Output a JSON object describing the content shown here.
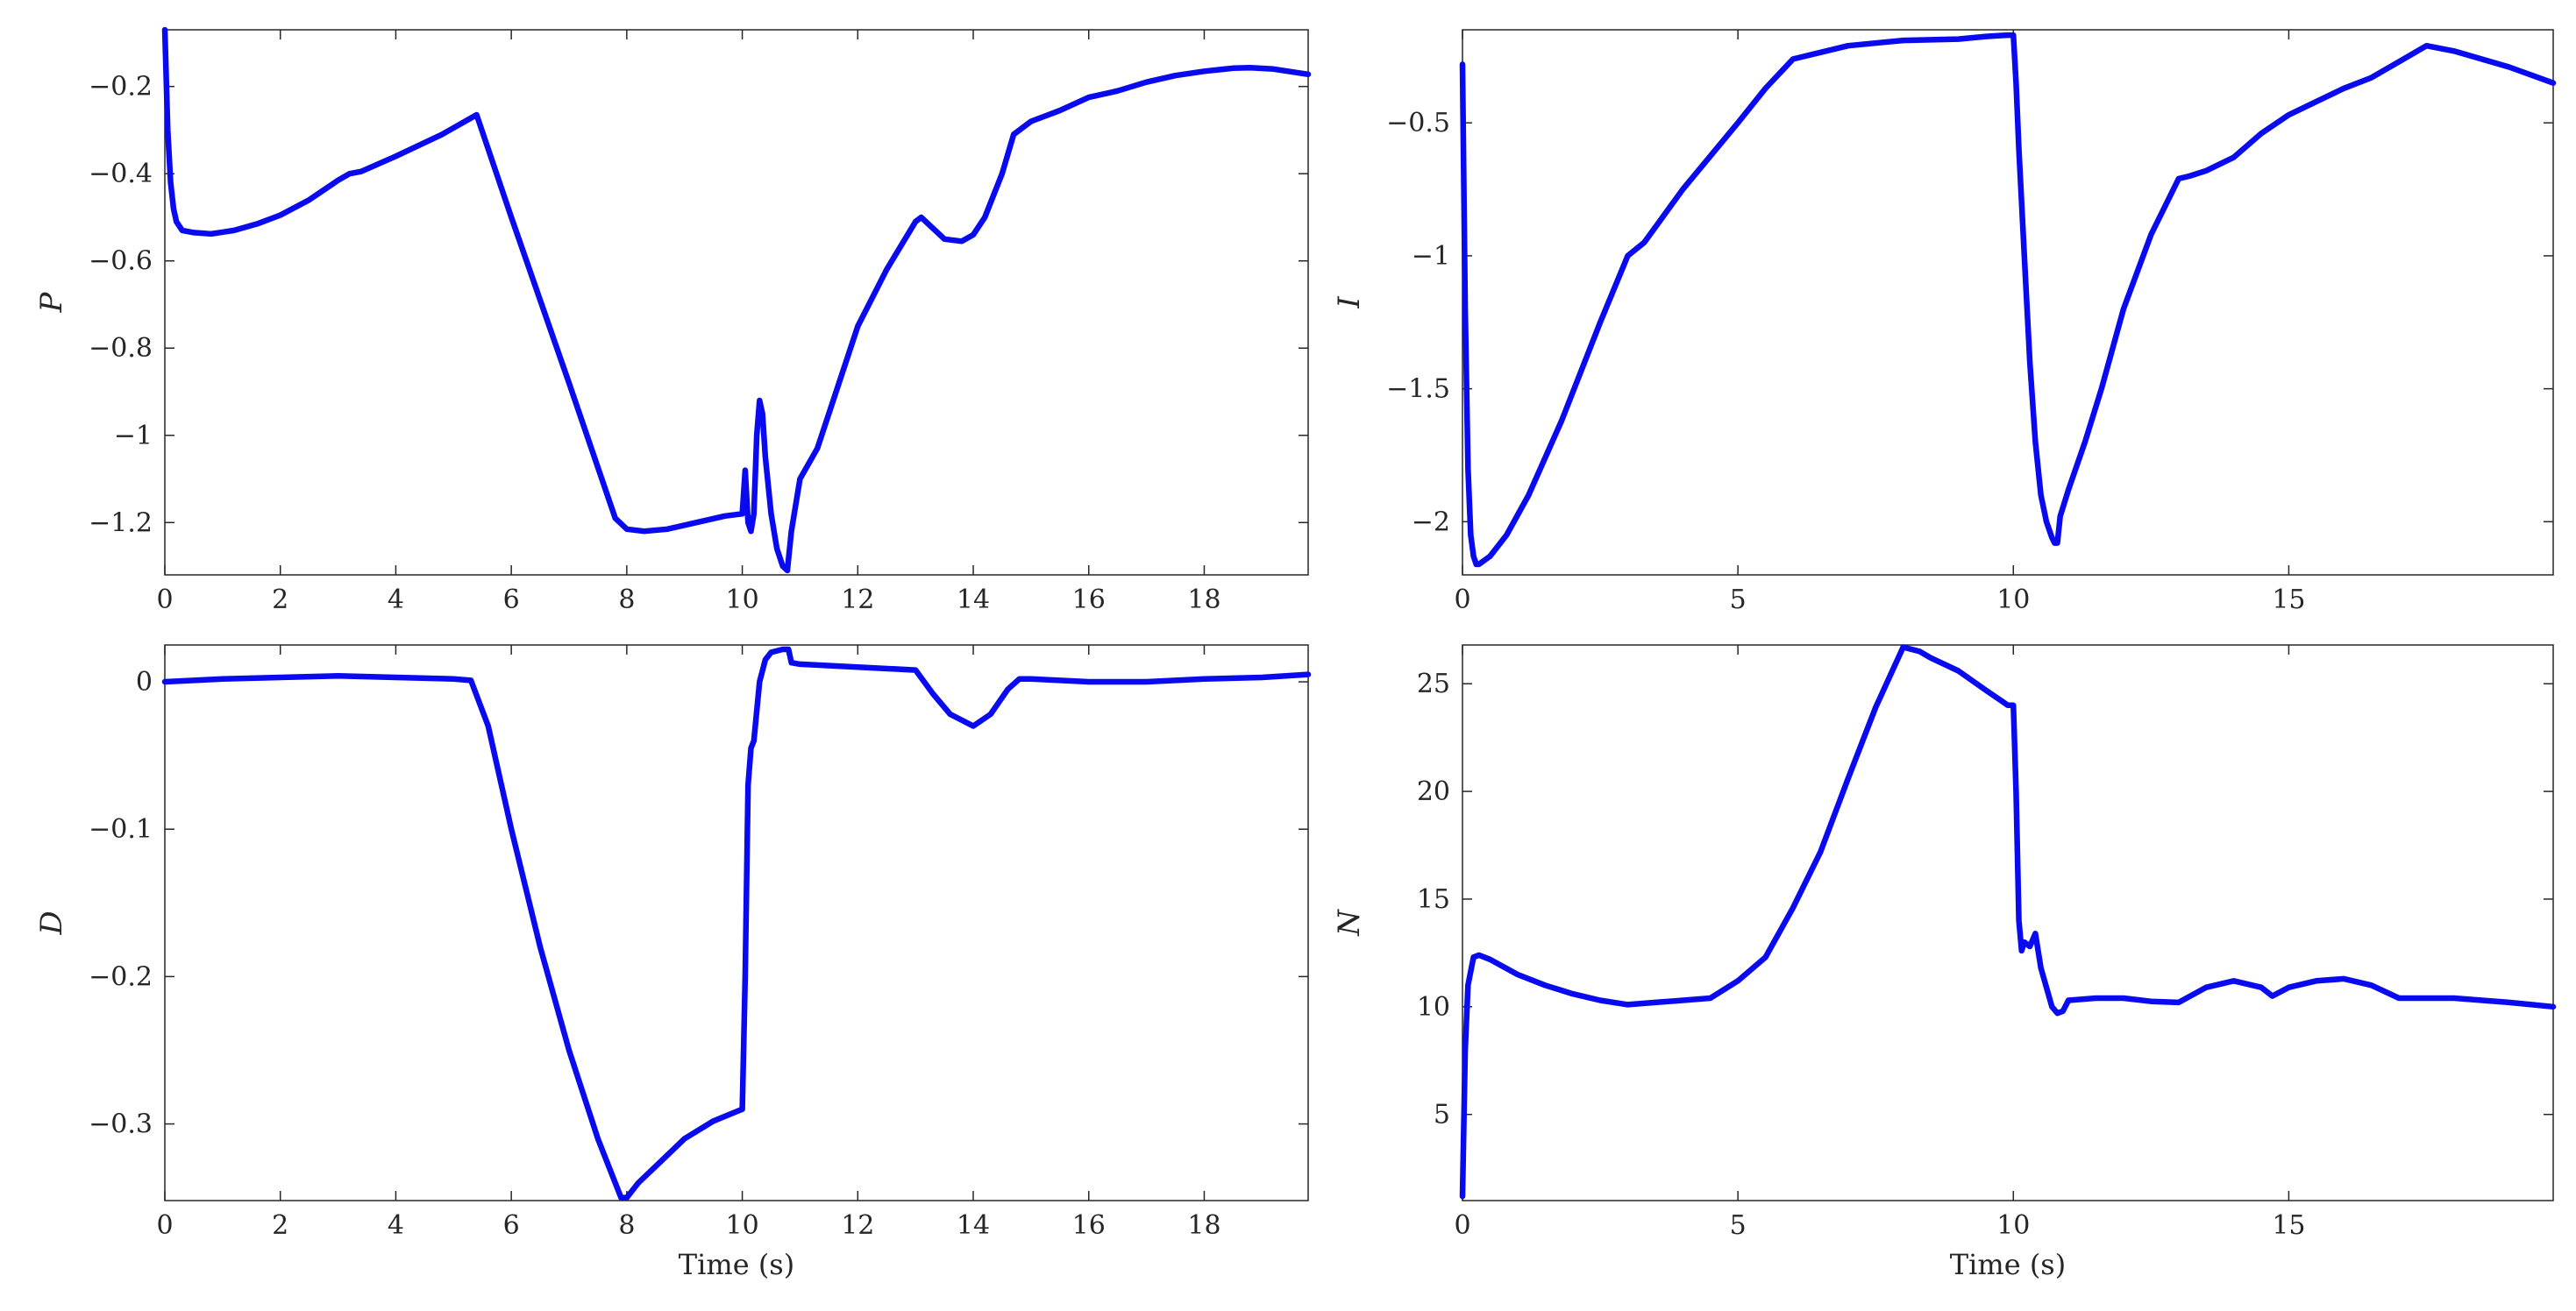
{
  "colors": {
    "line": "#0a0af0",
    "axes": "#262626",
    "background": "#ffffff"
  },
  "chart_data": [
    {
      "type": "line",
      "title": "",
      "xlabel": "",
      "ylabel": "P",
      "xlim": [
        0,
        19.8
      ],
      "ylim": [
        -1.32,
        -0.07
      ],
      "xticks": [
        0,
        2,
        4,
        6,
        8,
        10,
        12,
        14,
        16,
        18
      ],
      "xtick_labels": [
        "0",
        "2",
        "4",
        "6",
        "8",
        "10",
        "12",
        "14",
        "16",
        "18"
      ],
      "yticks": [
        -0.2,
        -0.4,
        -0.6,
        -0.8,
        -1,
        -1.2
      ],
      "ytick_labels": [
        "−0.2",
        "−0.4",
        "−0.6",
        "−0.8",
        "−1",
        "−1.2"
      ],
      "grid": false,
      "series": [
        {
          "x": [
            0,
            0.05,
            0.1,
            0.15,
            0.2,
            0.3,
            0.5,
            0.8,
            1.2,
            1.6,
            2,
            2.5,
            3,
            3.2,
            3.4,
            4,
            4.8,
            5.4,
            6,
            7,
            7.8,
            8,
            8.3,
            8.7,
            9.2,
            9.7,
            10,
            10.05,
            10.1,
            10.15,
            10.2,
            10.25,
            10.3,
            10.35,
            10.4,
            10.5,
            10.6,
            10.7,
            10.78,
            10.85,
            11,
            11.3,
            12,
            12.5,
            13,
            13.1,
            13.3,
            13.5,
            13.8,
            14,
            14.2,
            14.5,
            14.7,
            15,
            15.5,
            16,
            16.5,
            17,
            17.5,
            18,
            18.5,
            18.8,
            19.2,
            19.8
          ],
          "y": [
            -0.07,
            -0.3,
            -0.42,
            -0.48,
            -0.51,
            -0.53,
            -0.535,
            -0.538,
            -0.53,
            -0.515,
            -0.495,
            -0.46,
            -0.415,
            -0.4,
            -0.395,
            -0.36,
            -0.31,
            -0.265,
            -0.5,
            -0.88,
            -1.19,
            -1.215,
            -1.22,
            -1.215,
            -1.2,
            -1.185,
            -1.18,
            -1.08,
            -1.2,
            -1.22,
            -1.18,
            -1.0,
            -0.92,
            -0.95,
            -1.05,
            -1.18,
            -1.26,
            -1.3,
            -1.31,
            -1.22,
            -1.1,
            -1.03,
            -0.75,
            -0.62,
            -0.51,
            -0.5,
            -0.525,
            -0.55,
            -0.555,
            -0.54,
            -0.5,
            -0.4,
            -0.31,
            -0.28,
            -0.255,
            -0.225,
            -0.21,
            -0.19,
            -0.175,
            -0.165,
            -0.158,
            -0.157,
            -0.16,
            -0.172
          ]
        }
      ]
    },
    {
      "type": "line",
      "title": "",
      "xlabel": "",
      "ylabel": "I",
      "xlim": [
        0,
        19.8
      ],
      "ylim": [
        -2.2,
        -0.15
      ],
      "xticks": [
        0,
        5,
        10,
        15
      ],
      "xtick_labels": [
        "0",
        "5",
        "10",
        "15"
      ],
      "yticks": [
        -0.5,
        -1,
        -1.5,
        -2
      ],
      "ytick_labels": [
        "−0.5",
        "−1",
        "−1.5",
        "−2"
      ],
      "grid": false,
      "series": [
        {
          "x": [
            0,
            0.05,
            0.1,
            0.15,
            0.2,
            0.25,
            0.3,
            0.5,
            0.8,
            1.2,
            1.8,
            2.5,
            3,
            3.3,
            4,
            5,
            5.5,
            6,
            7,
            8,
            9,
            9.5,
            9.9,
            10,
            10.05,
            10.1,
            10.2,
            10.3,
            10.4,
            10.5,
            10.6,
            10.7,
            10.75,
            10.8,
            10.85,
            11,
            11.3,
            11.6,
            12,
            12.5,
            13,
            13.2,
            13.5,
            14,
            14.5,
            15,
            15.5,
            16,
            16.5,
            17,
            17.5,
            18,
            19,
            19.8
          ],
          "y": [
            -0.28,
            -1.2,
            -1.8,
            -2.05,
            -2.13,
            -2.16,
            -2.16,
            -2.13,
            -2.05,
            -1.9,
            -1.62,
            -1.25,
            -1.0,
            -0.95,
            -0.75,
            -0.5,
            -0.37,
            -0.26,
            -0.21,
            -0.19,
            -0.185,
            -0.175,
            -0.17,
            -0.17,
            -0.35,
            -0.6,
            -1.0,
            -1.4,
            -1.7,
            -1.9,
            -2.0,
            -2.06,
            -2.08,
            -2.08,
            -1.98,
            -1.88,
            -1.7,
            -1.5,
            -1.2,
            -0.92,
            -0.71,
            -0.7,
            -0.68,
            -0.63,
            -0.54,
            -0.47,
            -0.42,
            -0.37,
            -0.33,
            -0.27,
            -0.21,
            -0.23,
            -0.29,
            -0.35
          ]
        }
      ]
    },
    {
      "type": "line",
      "title": "",
      "xlabel": "Time (s)",
      "ylabel": "D",
      "xlim": [
        0,
        19.8
      ],
      "ylim": [
        -0.352,
        0.025
      ],
      "xticks": [
        0,
        2,
        4,
        6,
        8,
        10,
        12,
        14,
        16,
        18
      ],
      "xtick_labels": [
        "0",
        "2",
        "4",
        "6",
        "8",
        "10",
        "12",
        "14",
        "16",
        "18"
      ],
      "yticks": [
        0,
        -0.1,
        -0.2,
        -0.3
      ],
      "ytick_labels": [
        "0",
        "−0.1",
        "−0.2",
        "−0.3"
      ],
      "grid": false,
      "series": [
        {
          "x": [
            0,
            1,
            2,
            3,
            4,
            5,
            5.3,
            5.6,
            6,
            6.5,
            7,
            7.5,
            7.9,
            8,
            8.2,
            8.6,
            9,
            9.5,
            10,
            10.05,
            10.1,
            10.15,
            10.2,
            10.3,
            10.4,
            10.5,
            10.7,
            10.8,
            10.85,
            11,
            12,
            13,
            13.3,
            13.6,
            14,
            14.3,
            14.6,
            14.8,
            15,
            16,
            17,
            18,
            19,
            19.8
          ],
          "y": [
            0,
            0.002,
            0.003,
            0.004,
            0.003,
            0.002,
            0.001,
            -0.03,
            -0.1,
            -0.18,
            -0.25,
            -0.31,
            -0.35,
            -0.35,
            -0.34,
            -0.325,
            -0.31,
            -0.298,
            -0.29,
            -0.2,
            -0.07,
            -0.045,
            -0.04,
            0,
            0.015,
            0.02,
            0.022,
            0.022,
            0.013,
            0.012,
            0.01,
            0.008,
            -0.008,
            -0.022,
            -0.03,
            -0.022,
            -0.005,
            0.002,
            0.002,
            0.0,
            0.0,
            0.002,
            0.003,
            0.005
          ]
        }
      ]
    },
    {
      "type": "line",
      "title": "",
      "xlabel": "Time (s)",
      "ylabel": "N",
      "xlim": [
        0,
        19.8
      ],
      "ylim": [
        1,
        26.8
      ],
      "xticks": [
        0,
        5,
        10,
        15
      ],
      "xtick_labels": [
        "0",
        "5",
        "10",
        "15"
      ],
      "yticks": [
        5,
        10,
        15,
        20,
        25
      ],
      "ytick_labels": [
        "5",
        "10",
        "15",
        "20",
        "25"
      ],
      "grid": false,
      "series": [
        {
          "x": [
            0,
            0.05,
            0.1,
            0.2,
            0.3,
            0.5,
            1,
            1.5,
            2,
            2.5,
            3,
            3.5,
            4,
            4.5,
            5,
            5.5,
            6,
            6.5,
            7,
            7.5,
            8,
            8.3,
            8.5,
            9,
            9.5,
            9.9,
            10,
            10.05,
            10.1,
            10.15,
            10.2,
            10.3,
            10.4,
            10.5,
            10.7,
            10.8,
            10.9,
            11,
            11.5,
            12,
            12.5,
            13,
            13.5,
            14,
            14.5,
            14.7,
            15,
            15.5,
            16,
            16.5,
            17,
            18,
            19,
            19.8
          ],
          "y": [
            1.2,
            8,
            11,
            12.3,
            12.4,
            12.2,
            11.5,
            11,
            10.6,
            10.3,
            10.1,
            10.2,
            10.3,
            10.4,
            11.2,
            12.3,
            14.6,
            17.2,
            20.6,
            23.9,
            26.7,
            26.5,
            26.2,
            25.6,
            24.7,
            24,
            24,
            20,
            14,
            12.6,
            13,
            12.8,
            13.4,
            11.8,
            10,
            9.7,
            9.8,
            10.3,
            10.4,
            10.4,
            10.25,
            10.2,
            10.9,
            11.2,
            10.9,
            10.5,
            10.9,
            11.2,
            11.3,
            11.0,
            10.4,
            10.4,
            10.2,
            10.0
          ]
        }
      ]
    }
  ]
}
